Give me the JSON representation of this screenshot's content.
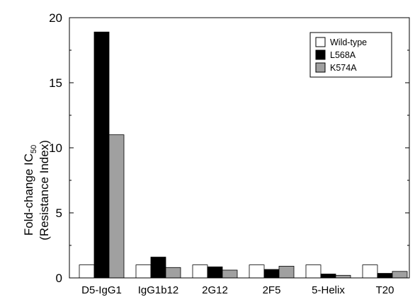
{
  "chart_data": {
    "type": "bar",
    "categories": [
      "D5-IgG1",
      "IgG1b12",
      "2G12",
      "2F5",
      "5-Helix",
      "T20"
    ],
    "series": [
      {
        "name": "Wild-type",
        "color": "#ffffff",
        "values": [
          1,
          1,
          1,
          1,
          1,
          1
        ]
      },
      {
        "name": "L568A",
        "color": "#000000",
        "values": [
          18.9,
          1.6,
          0.85,
          0.65,
          0.3,
          0.35
        ]
      },
      {
        "name": "K574A",
        "color": "#a0a0a0",
        "values": [
          11.0,
          0.8,
          0.6,
          0.9,
          0.2,
          0.5
        ]
      }
    ],
    "ylabel_line1": "Fold-change IC",
    "ylabel_subscript": "50",
    "ylabel_line2": "(Resistance Index)",
    "xlabel": "",
    "ylim": [
      0,
      20
    ],
    "yticks": [
      0,
      5,
      10,
      15,
      20
    ],
    "legend_position": "top-right",
    "grid": false
  }
}
